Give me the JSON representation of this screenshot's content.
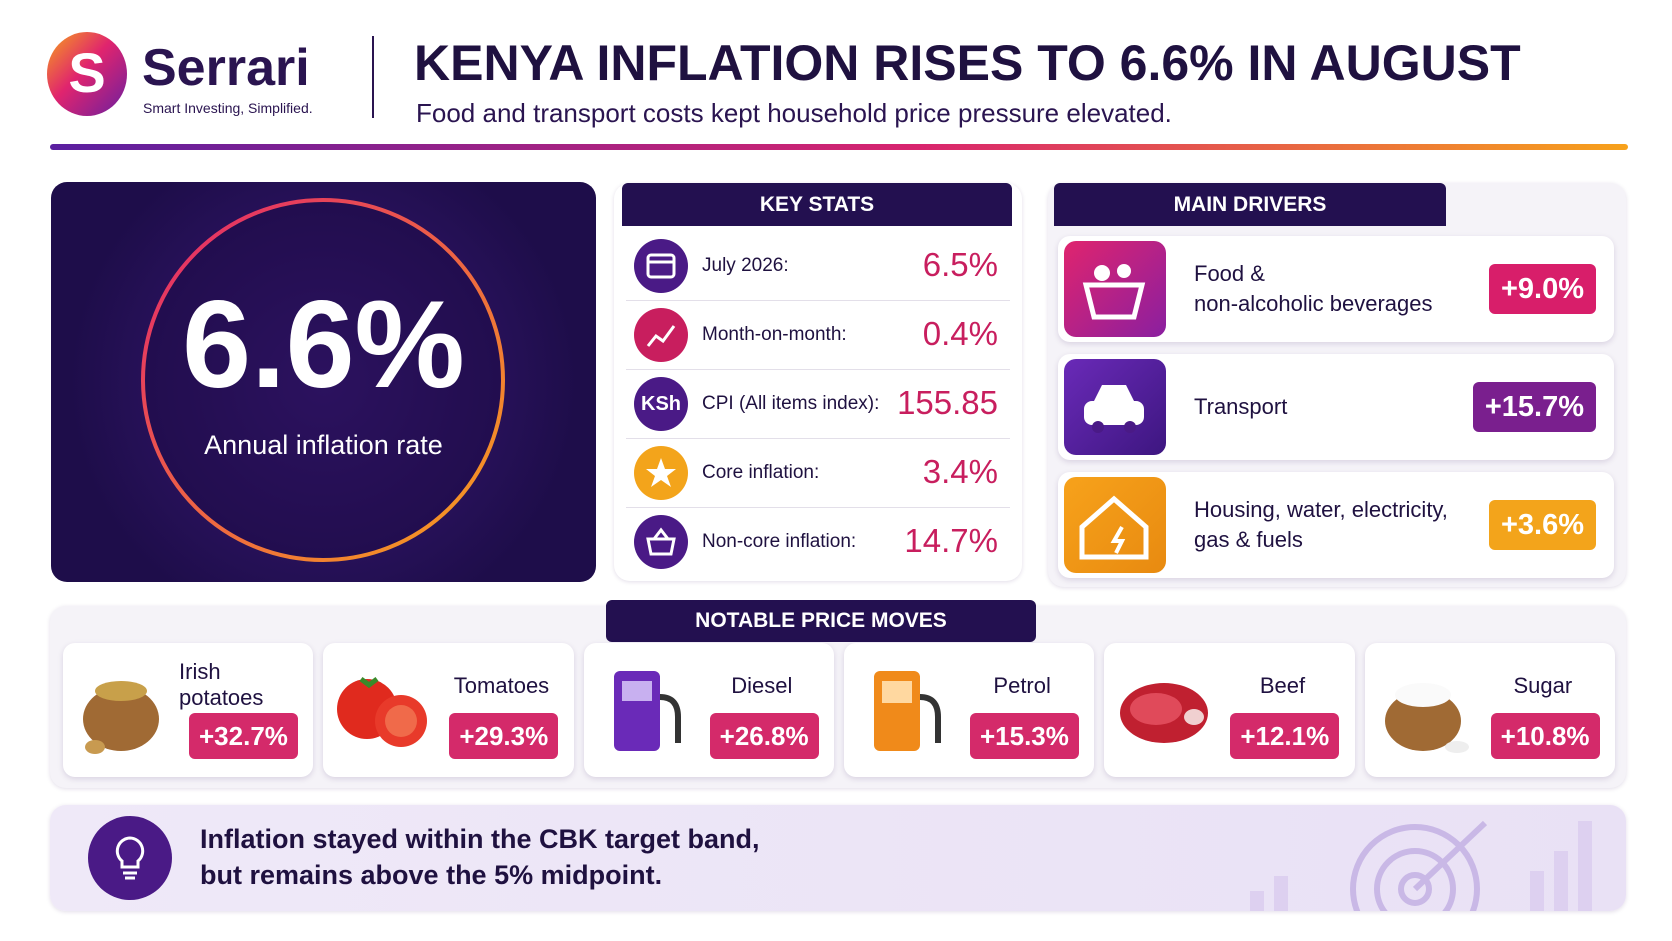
{
  "header": {
    "logo_mark": "S",
    "brand": "Serrari",
    "tagline": "Smart Investing, Simplified.",
    "title": "KENYA INFLATION RISES TO 6.6% IN AUGUST",
    "subtitle": "Food and transport costs kept household price pressure elevated."
  },
  "hero": {
    "value": "6.6%",
    "label": "Annual inflation rate"
  },
  "key_stats": {
    "title": "KEY STATS",
    "rows": [
      {
        "label": "July 2026:",
        "value": "6.5%"
      },
      {
        "label": "Month-on-month:",
        "value": "0.4%"
      },
      {
        "icon": "KSh",
        "label": "CPI (All items index):",
        "value": "155.85"
      },
      {
        "label": "Core inflation:",
        "value": "3.4%"
      },
      {
        "label": "Non-core inflation:",
        "value": "14.7%"
      }
    ]
  },
  "main_drivers": {
    "title": "MAIN DRIVERS",
    "items": [
      {
        "label": "Food &\nnon-alcoholic beverages",
        "value": "+9.0%"
      },
      {
        "label": "Transport",
        "value": "+15.7%"
      },
      {
        "label": "Housing, water, electricity,\ngas & fuels",
        "value": "+3.6%"
      }
    ]
  },
  "price_moves": {
    "title": "NOTABLE PRICE MOVES",
    "items": [
      {
        "label": "Irish\npotatoes",
        "value": "+32.7%"
      },
      {
        "label": "Tomatoes",
        "value": "+29.3%"
      },
      {
        "label": "Diesel",
        "value": "+26.8%"
      },
      {
        "label": "Petrol",
        "value": "+15.3%"
      },
      {
        "label": "Beef",
        "value": "+12.1%"
      },
      {
        "label": "Sugar",
        "value": "+10.8%"
      }
    ]
  },
  "note": {
    "text": "Inflation stayed within the CBK target band,\nbut remains above the 5% midpoint."
  }
}
